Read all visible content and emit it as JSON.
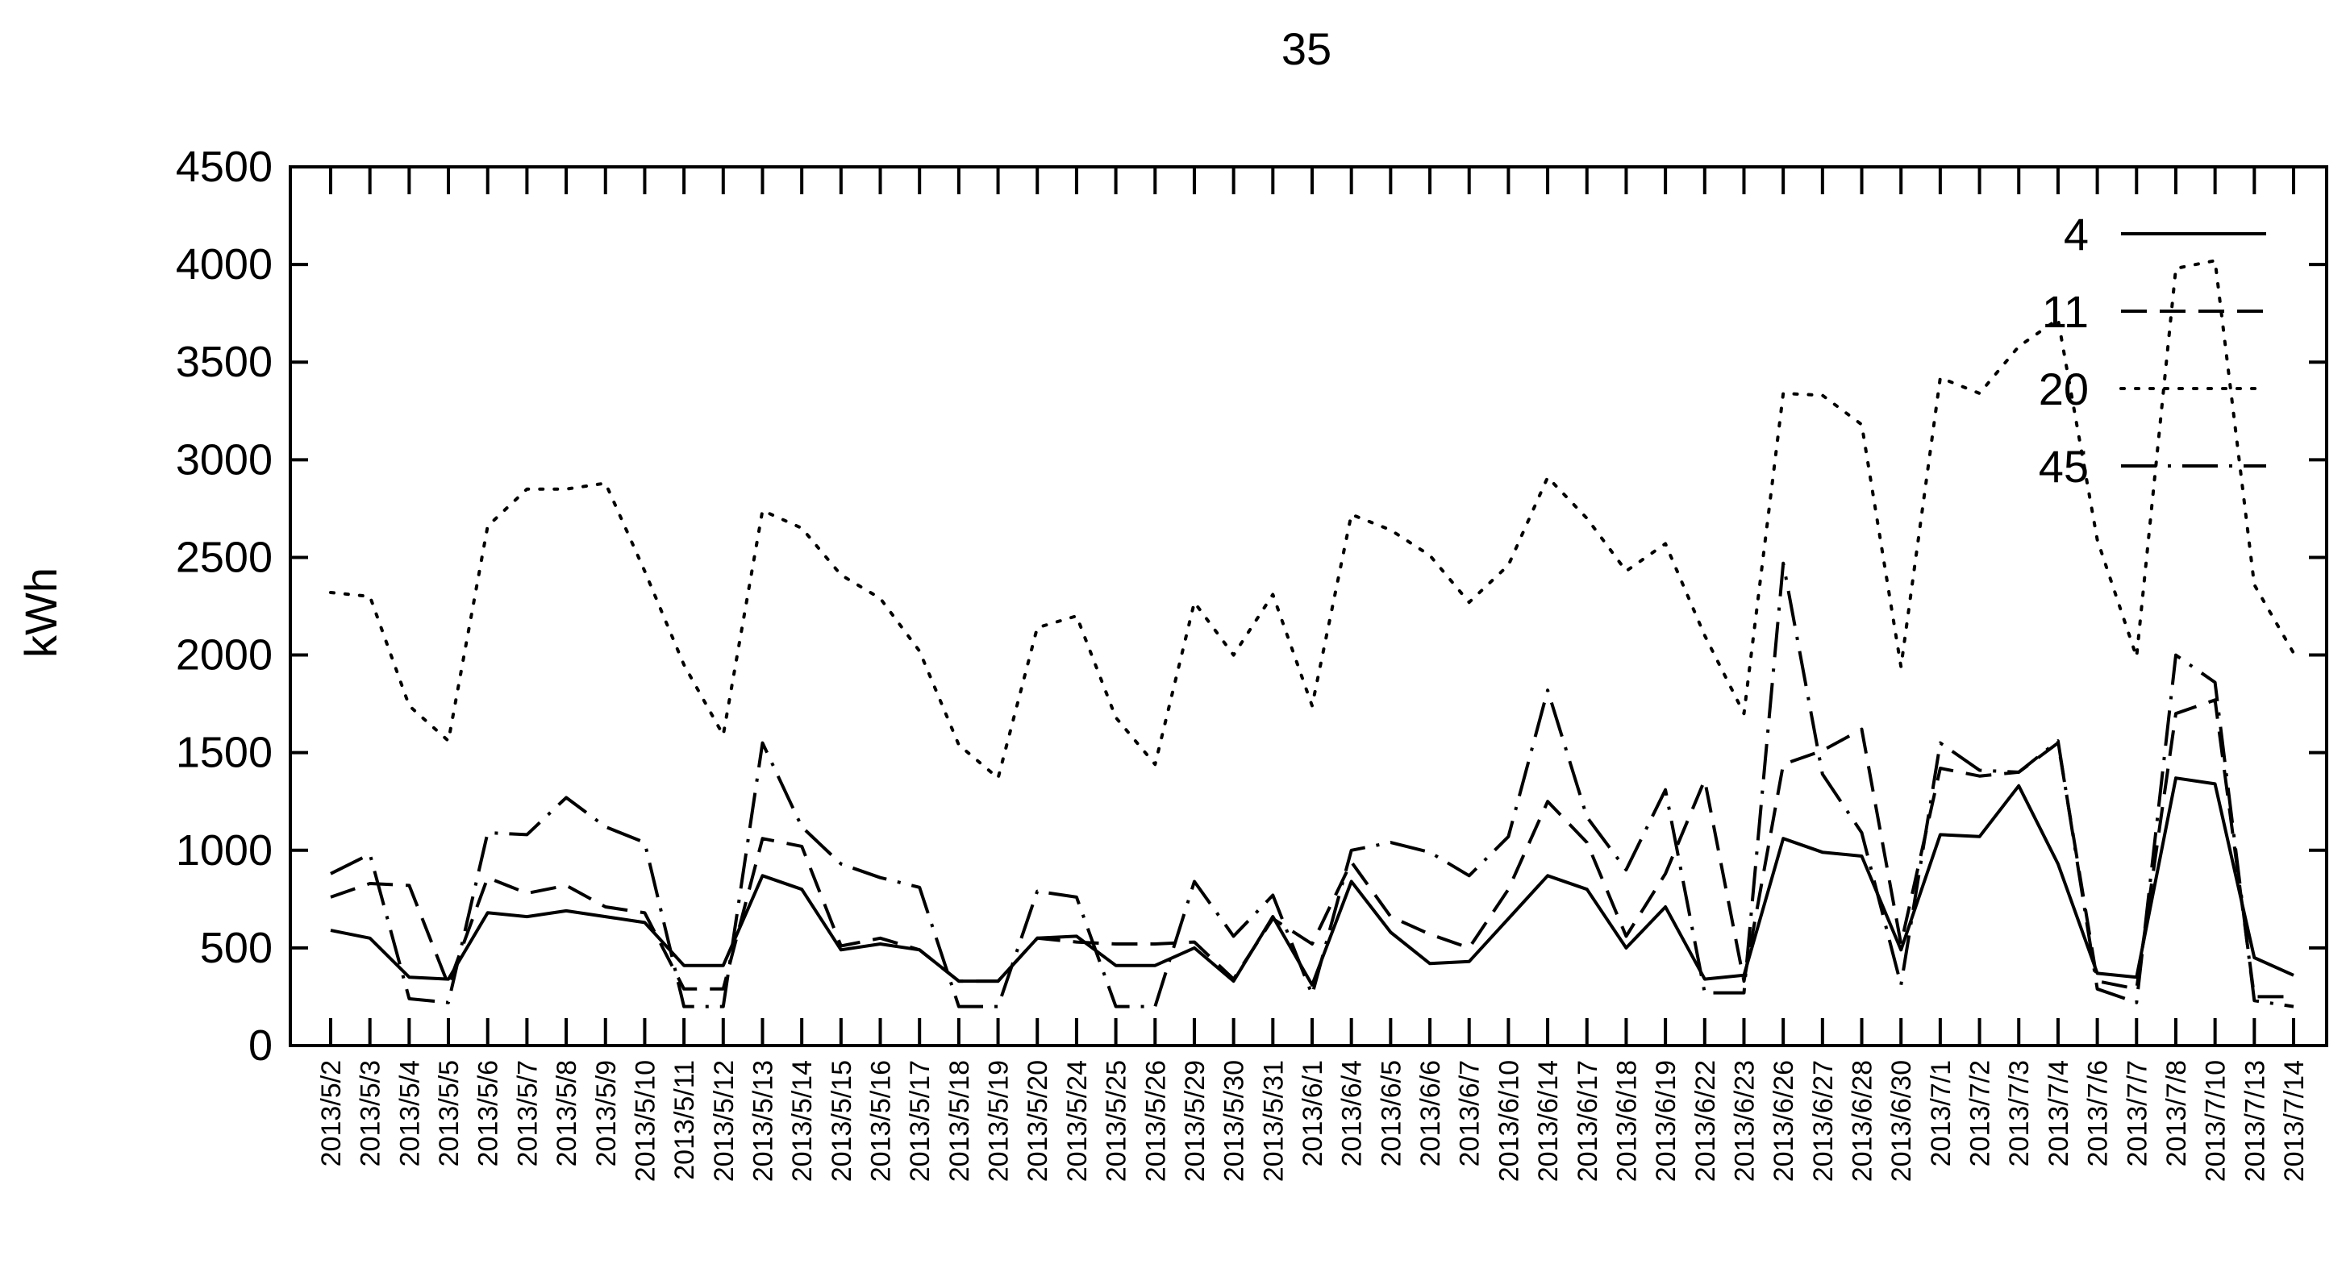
{
  "chart_data": {
    "type": "line",
    "title": "35",
    "xlabel": "",
    "ylabel": "kWh",
    "ylim": [
      0,
      4500
    ],
    "yticks": [
      0,
      500,
      1000,
      1500,
      2000,
      2500,
      3000,
      3500,
      4000,
      4500
    ],
    "grid": false,
    "legend_position": "top-right",
    "categories": [
      "2013/5/2",
      "2013/5/3",
      "2013/5/4",
      "2013/5/5",
      "2013/5/6",
      "2013/5/7",
      "2013/5/8",
      "2013/5/9",
      "2013/5/10",
      "2013/5/11",
      "2013/5/12",
      "2013/5/13",
      "2013/5/14",
      "2013/5/15",
      "2013/5/16",
      "2013/5/17",
      "2013/5/18",
      "2013/5/19",
      "2013/5/20",
      "2013/5/24",
      "2013/5/25",
      "2013/5/26",
      "2013/5/29",
      "2013/5/30",
      "2013/5/31",
      "2013/6/1",
      "2013/6/4",
      "2013/6/5",
      "2013/6/6",
      "2013/6/7",
      "2013/6/10",
      "2013/6/14",
      "2013/6/17",
      "2013/6/18",
      "2013/6/19",
      "2013/6/22",
      "2013/6/23",
      "2013/6/26",
      "2013/6/27",
      "2013/6/28",
      "2013/6/30",
      "2013/7/1",
      "2013/7/2",
      "2013/7/3",
      "2013/7/4",
      "2013/7/6",
      "2013/7/7",
      "2013/7/8",
      "2013/7/10",
      "2013/7/13",
      "2013/7/14"
    ],
    "series": [
      {
        "name": "4",
        "dash": "solid",
        "values": [
          590,
          550,
          350,
          340,
          680,
          660,
          690,
          660,
          630,
          410,
          410,
          870,
          800,
          490,
          520,
          490,
          330,
          330,
          550,
          560,
          410,
          410,
          500,
          330,
          660,
          310,
          840,
          580,
          420,
          430,
          650,
          870,
          800,
          500,
          710,
          340,
          360,
          1060,
          990,
          970,
          490,
          1080,
          1070,
          1330,
          930,
          370,
          350,
          1370,
          1340,
          450,
          360
        ]
      },
      {
        "name": "11",
        "dash": "dashed",
        "values": [
          760,
          830,
          820,
          310,
          860,
          780,
          820,
          710,
          680,
          290,
          290,
          1060,
          1020,
          510,
          550,
          490,
          330,
          330,
          550,
          530,
          520,
          520,
          530,
          340,
          650,
          520,
          940,
          660,
          570,
          500,
          800,
          1250,
          1040,
          560,
          880,
          1360,
          330,
          1440,
          1510,
          1620,
          520,
          1420,
          1380,
          1400,
          1550,
          330,
          290,
          1700,
          1770,
          250,
          250
        ]
      },
      {
        "name": "20",
        "dash": "dotted",
        "values": [
          2320,
          2300,
          1740,
          1560,
          2660,
          2850,
          2850,
          2880,
          2430,
          1950,
          1590,
          2740,
          2650,
          2410,
          2290,
          2020,
          1540,
          1370,
          2140,
          2200,
          1680,
          1440,
          2270,
          2000,
          2310,
          1740,
          2720,
          2640,
          2510,
          2270,
          2460,
          2910,
          2700,
          2430,
          2570,
          2100,
          1700,
          3340,
          3330,
          3180,
          1940,
          3420,
          3340,
          3580,
          3720,
          2590,
          1990,
          3980,
          4020,
          2360,
          2010
        ]
      },
      {
        "name": "45",
        "dash": "dashdot",
        "values": [
          880,
          980,
          240,
          220,
          1090,
          1080,
          1270,
          1120,
          1040,
          200,
          200,
          1550,
          1120,
          930,
          860,
          810,
          200,
          200,
          790,
          760,
          200,
          200,
          840,
          560,
          770,
          260,
          1000,
          1040,
          990,
          870,
          1070,
          1820,
          1170,
          900,
          1310,
          270,
          270,
          2470,
          1390,
          1090,
          310,
          1550,
          1410,
          1400,
          1560,
          290,
          220,
          2000,
          1860,
          230,
          200
        ]
      }
    ]
  }
}
